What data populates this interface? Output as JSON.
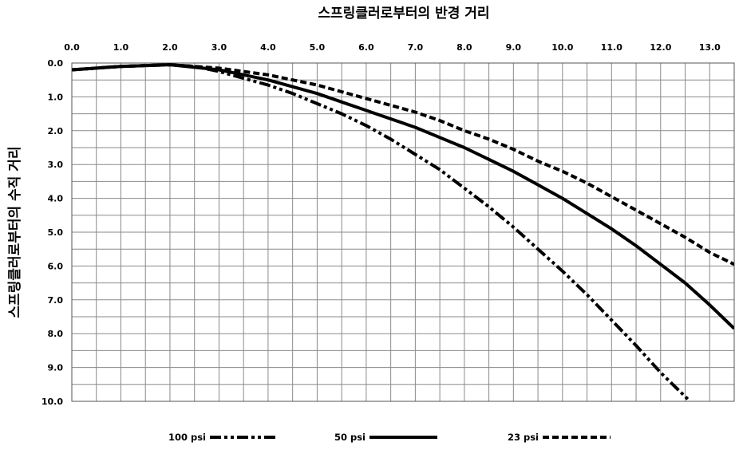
{
  "chart_data": {
    "type": "line",
    "title": "스프링클러로부터의 반경 거리",
    "xlabel": "스프링클러로부터의 반경 거리",
    "ylabel": "스프링클러로부터의 수직 거리",
    "x_ticks": [
      "0.0",
      "1.0",
      "2.0",
      "3.0",
      "4.0",
      "5.0",
      "6.0",
      "7.0",
      "8.0",
      "9.0",
      "10.0",
      "11.0",
      "12.0",
      "13.0"
    ],
    "y_ticks": [
      "0.0",
      "1.0",
      "2.0",
      "3.0",
      "4.0",
      "5.0",
      "6.0",
      "7.0",
      "8.0",
      "9.0",
      "10.0"
    ],
    "xlim": [
      0,
      13.5
    ],
    "ylim": [
      0,
      10
    ],
    "y_inverted": true,
    "x_axis_position": "top",
    "grid": true,
    "grid_step": 0.5,
    "legend_position": "bottom",
    "series": [
      {
        "name": "100 psi",
        "style": "dash-dot-dot",
        "x": [
          0,
          1,
          2,
          2.5,
          3,
          3.5,
          4,
          4.5,
          5,
          5.5,
          6,
          6.5,
          7,
          7.5,
          8,
          8.5,
          9,
          9.5,
          10,
          10.5,
          11,
          11.5,
          12,
          12.6
        ],
        "y": [
          0.2,
          0.1,
          0.05,
          0.1,
          0.25,
          0.45,
          0.65,
          0.9,
          1.2,
          1.5,
          1.85,
          2.25,
          2.7,
          3.15,
          3.7,
          4.25,
          4.85,
          5.5,
          6.15,
          6.85,
          7.6,
          8.35,
          9.15,
          10.0
        ]
      },
      {
        "name": "50 psi",
        "style": "solid",
        "x": [
          0,
          1,
          2,
          3,
          3.5,
          4,
          4.5,
          5,
          5.5,
          6,
          6.5,
          7,
          7.5,
          8,
          8.5,
          9,
          9.5,
          10,
          10.5,
          11,
          11.5,
          12,
          12.5,
          13,
          13.5
        ],
        "y": [
          0.2,
          0.1,
          0.05,
          0.2,
          0.35,
          0.5,
          0.7,
          0.9,
          1.15,
          1.4,
          1.65,
          1.9,
          2.2,
          2.5,
          2.85,
          3.2,
          3.6,
          4.0,
          4.45,
          4.9,
          5.4,
          5.95,
          6.5,
          7.15,
          7.85
        ]
      },
      {
        "name": "23 psi",
        "style": "dash",
        "x": [
          0,
          1,
          2,
          3,
          4,
          4.5,
          5,
          5.5,
          6,
          6.5,
          7,
          7.5,
          8,
          8.5,
          9,
          9.5,
          10,
          10.5,
          11,
          11.5,
          12,
          12.5,
          13,
          13.5
        ],
        "y": [
          0.2,
          0.1,
          0.05,
          0.15,
          0.35,
          0.5,
          0.65,
          0.85,
          1.05,
          1.25,
          1.45,
          1.7,
          2.0,
          2.25,
          2.55,
          2.9,
          3.2,
          3.55,
          3.95,
          4.35,
          4.75,
          5.15,
          5.6,
          5.95
        ]
      }
    ]
  }
}
